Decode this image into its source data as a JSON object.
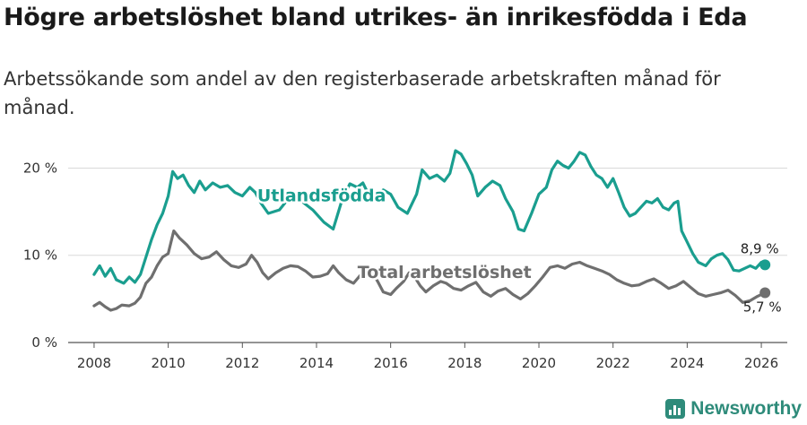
{
  "title": "Högre arbetslöshet bland utrikes- än inrikesfödda i Eda",
  "subtitle": "Arbetssökande som andel av den registerbaserade arbetskraften månad för månad.",
  "brand": "Newsworthy",
  "colors": {
    "foreign": "#1a9e8f",
    "total": "#6f6f6f",
    "grid": "#d9d9d9",
    "brand": "#2e8b7a"
  },
  "chart_data": {
    "type": "line",
    "title": "Högre arbetslöshet bland utrikes- än inrikesfödda i Eda",
    "xlabel": "",
    "ylabel": "",
    "xlim": [
      2007.3,
      2026.7
    ],
    "ylim": [
      0,
      22
    ],
    "grid": true,
    "x_ticks": [
      2008,
      2010,
      2012,
      2014,
      2016,
      2018,
      2020,
      2022,
      2024,
      2026
    ],
    "x_tick_labels": [
      "2008",
      "2010",
      "2012",
      "2014",
      "2016",
      "2018",
      "2020",
      "2022",
      "2024",
      "2026"
    ],
    "y_ticks": [
      0,
      10,
      20
    ],
    "y_tick_labels": [
      "0 %",
      "10 %",
      "20 %"
    ],
    "series": [
      {
        "name": "Utlandsfödda",
        "color": "#1a9e8f",
        "end_label": "8,9 %",
        "points": [
          [
            2008.0,
            7.8
          ],
          [
            2008.15,
            8.8
          ],
          [
            2008.3,
            7.6
          ],
          [
            2008.45,
            8.5
          ],
          [
            2008.6,
            7.2
          ],
          [
            2008.8,
            6.8
          ],
          [
            2008.95,
            7.5
          ],
          [
            2009.1,
            6.9
          ],
          [
            2009.25,
            7.8
          ],
          [
            2009.4,
            9.8
          ],
          [
            2009.55,
            11.8
          ],
          [
            2009.7,
            13.5
          ],
          [
            2009.85,
            14.8
          ],
          [
            2010.0,
            16.8
          ],
          [
            2010.12,
            19.6
          ],
          [
            2010.25,
            18.8
          ],
          [
            2010.4,
            19.2
          ],
          [
            2010.55,
            18.0
          ],
          [
            2010.7,
            17.2
          ],
          [
            2010.85,
            18.5
          ],
          [
            2011.0,
            17.5
          ],
          [
            2011.2,
            18.3
          ],
          [
            2011.4,
            17.8
          ],
          [
            2011.6,
            18.0
          ],
          [
            2011.8,
            17.2
          ],
          [
            2012.0,
            16.8
          ],
          [
            2012.2,
            17.8
          ],
          [
            2012.35,
            17.2
          ],
          [
            2012.5,
            16.0
          ],
          [
            2012.7,
            14.8
          ],
          [
            2013.0,
            15.2
          ],
          [
            2013.3,
            16.8
          ],
          [
            2013.6,
            16.2
          ],
          [
            2013.9,
            15.2
          ],
          [
            2014.2,
            13.8
          ],
          [
            2014.45,
            13.0
          ],
          [
            2014.7,
            16.5
          ],
          [
            2014.9,
            18.2
          ],
          [
            2015.1,
            17.8
          ],
          [
            2015.25,
            18.3
          ],
          [
            2015.4,
            17.0
          ],
          [
            2015.6,
            16.2
          ],
          [
            2015.8,
            17.5
          ],
          [
            2016.0,
            17.0
          ],
          [
            2016.2,
            15.5
          ],
          [
            2016.45,
            14.8
          ],
          [
            2016.7,
            17.0
          ],
          [
            2016.85,
            19.8
          ],
          [
            2017.05,
            18.8
          ],
          [
            2017.25,
            19.2
          ],
          [
            2017.45,
            18.5
          ],
          [
            2017.6,
            19.4
          ],
          [
            2017.75,
            22.0
          ],
          [
            2017.9,
            21.6
          ],
          [
            2018.05,
            20.5
          ],
          [
            2018.2,
            19.2
          ],
          [
            2018.35,
            16.8
          ],
          [
            2018.55,
            17.8
          ],
          [
            2018.75,
            18.5
          ],
          [
            2018.95,
            18.0
          ],
          [
            2019.1,
            16.5
          ],
          [
            2019.3,
            15.0
          ],
          [
            2019.45,
            13.0
          ],
          [
            2019.6,
            12.8
          ],
          [
            2019.8,
            14.8
          ],
          [
            2020.0,
            17.0
          ],
          [
            2020.2,
            17.8
          ],
          [
            2020.35,
            19.8
          ],
          [
            2020.5,
            20.8
          ],
          [
            2020.65,
            20.3
          ],
          [
            2020.8,
            20.0
          ],
          [
            2020.95,
            20.8
          ],
          [
            2021.1,
            21.8
          ],
          [
            2021.25,
            21.5
          ],
          [
            2021.4,
            20.2
          ],
          [
            2021.55,
            19.2
          ],
          [
            2021.7,
            18.8
          ],
          [
            2021.85,
            17.8
          ],
          [
            2022.0,
            18.8
          ],
          [
            2022.15,
            17.2
          ],
          [
            2022.3,
            15.5
          ],
          [
            2022.45,
            14.5
          ],
          [
            2022.6,
            14.8
          ],
          [
            2022.75,
            15.5
          ],
          [
            2022.9,
            16.2
          ],
          [
            2023.05,
            16.0
          ],
          [
            2023.2,
            16.5
          ],
          [
            2023.35,
            15.5
          ],
          [
            2023.5,
            15.2
          ],
          [
            2023.65,
            16.0
          ],
          [
            2023.75,
            16.2
          ],
          [
            2023.85,
            12.8
          ],
          [
            2024.0,
            11.5
          ],
          [
            2024.15,
            10.2
          ],
          [
            2024.3,
            9.2
          ],
          [
            2024.5,
            8.8
          ],
          [
            2024.65,
            9.6
          ],
          [
            2024.8,
            10.0
          ],
          [
            2024.95,
            10.2
          ],
          [
            2025.1,
            9.5
          ],
          [
            2025.25,
            8.3
          ],
          [
            2025.4,
            8.2
          ],
          [
            2025.55,
            8.5
          ],
          [
            2025.7,
            8.8
          ],
          [
            2025.85,
            8.5
          ],
          [
            2026.0,
            9.2
          ],
          [
            2026.1,
            8.9
          ]
        ]
      },
      {
        "name": "Total arbetslöshet",
        "color": "#6f6f6f",
        "end_label": "5,7 %",
        "points": [
          [
            2008.0,
            4.2
          ],
          [
            2008.15,
            4.6
          ],
          [
            2008.3,
            4.1
          ],
          [
            2008.45,
            3.7
          ],
          [
            2008.6,
            3.9
          ],
          [
            2008.75,
            4.3
          ],
          [
            2008.95,
            4.2
          ],
          [
            2009.1,
            4.5
          ],
          [
            2009.25,
            5.2
          ],
          [
            2009.4,
            6.8
          ],
          [
            2009.55,
            7.5
          ],
          [
            2009.7,
            8.8
          ],
          [
            2009.85,
            9.8
          ],
          [
            2010.0,
            10.2
          ],
          [
            2010.15,
            12.8
          ],
          [
            2010.3,
            12.0
          ],
          [
            2010.5,
            11.2
          ],
          [
            2010.7,
            10.2
          ],
          [
            2010.9,
            9.6
          ],
          [
            2011.1,
            9.8
          ],
          [
            2011.3,
            10.4
          ],
          [
            2011.5,
            9.5
          ],
          [
            2011.7,
            8.8
          ],
          [
            2011.9,
            8.6
          ],
          [
            2012.1,
            9.0
          ],
          [
            2012.25,
            10.0
          ],
          [
            2012.4,
            9.2
          ],
          [
            2012.55,
            8.0
          ],
          [
            2012.7,
            7.3
          ],
          [
            2012.9,
            8.0
          ],
          [
            2013.1,
            8.5
          ],
          [
            2013.3,
            8.8
          ],
          [
            2013.5,
            8.7
          ],
          [
            2013.7,
            8.2
          ],
          [
            2013.9,
            7.5
          ],
          [
            2014.1,
            7.6
          ],
          [
            2014.3,
            7.9
          ],
          [
            2014.45,
            8.8
          ],
          [
            2014.6,
            8.0
          ],
          [
            2014.8,
            7.2
          ],
          [
            2015.0,
            6.8
          ],
          [
            2015.2,
            7.8
          ],
          [
            2015.35,
            8.8
          ],
          [
            2015.5,
            8.0
          ],
          [
            2015.65,
            7.0
          ],
          [
            2015.8,
            5.8
          ],
          [
            2016.0,
            5.5
          ],
          [
            2016.15,
            6.2
          ],
          [
            2016.35,
            7.0
          ],
          [
            2016.5,
            8.0
          ],
          [
            2016.65,
            7.5
          ],
          [
            2016.8,
            6.5
          ],
          [
            2016.95,
            5.8
          ],
          [
            2017.15,
            6.5
          ],
          [
            2017.35,
            7.0
          ],
          [
            2017.5,
            6.8
          ],
          [
            2017.7,
            6.2
          ],
          [
            2017.9,
            6.0
          ],
          [
            2018.1,
            6.5
          ],
          [
            2018.3,
            6.9
          ],
          [
            2018.5,
            5.8
          ],
          [
            2018.7,
            5.3
          ],
          [
            2018.9,
            5.9
          ],
          [
            2019.1,
            6.2
          ],
          [
            2019.3,
            5.5
          ],
          [
            2019.5,
            5.0
          ],
          [
            2019.7,
            5.6
          ],
          [
            2019.9,
            6.5
          ],
          [
            2020.1,
            7.5
          ],
          [
            2020.3,
            8.6
          ],
          [
            2020.5,
            8.8
          ],
          [
            2020.7,
            8.5
          ],
          [
            2020.9,
            9.0
          ],
          [
            2021.1,
            9.2
          ],
          [
            2021.3,
            8.8
          ],
          [
            2021.5,
            8.5
          ],
          [
            2021.7,
            8.2
          ],
          [
            2021.9,
            7.8
          ],
          [
            2022.1,
            7.2
          ],
          [
            2022.3,
            6.8
          ],
          [
            2022.5,
            6.5
          ],
          [
            2022.7,
            6.6
          ],
          [
            2022.9,
            7.0
          ],
          [
            2023.1,
            7.3
          ],
          [
            2023.3,
            6.8
          ],
          [
            2023.5,
            6.2
          ],
          [
            2023.7,
            6.5
          ],
          [
            2023.9,
            7.0
          ],
          [
            2024.1,
            6.3
          ],
          [
            2024.3,
            5.6
          ],
          [
            2024.5,
            5.3
          ],
          [
            2024.7,
            5.5
          ],
          [
            2024.9,
            5.7
          ],
          [
            2025.1,
            6.0
          ],
          [
            2025.3,
            5.4
          ],
          [
            2025.5,
            4.6
          ],
          [
            2025.7,
            4.8
          ],
          [
            2025.9,
            5.3
          ],
          [
            2026.1,
            5.7
          ]
        ]
      }
    ]
  }
}
